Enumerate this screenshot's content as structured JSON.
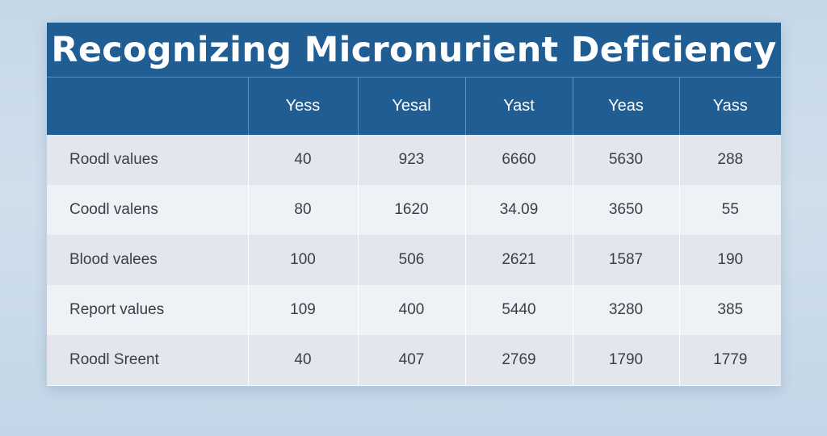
{
  "chart_data": {
    "type": "table",
    "title": "Recognizing Micronurient Deficiency",
    "columns": [
      "",
      "Yess",
      "Yesal",
      "Yast",
      "Yeas",
      "Yass"
    ],
    "rows": [
      {
        "label": "Roodl values",
        "values": [
          "40",
          "923",
          "6660",
          "5630",
          "288"
        ]
      },
      {
        "label": "Coodl valens",
        "values": [
          "80",
          "1620",
          "34.09",
          "3650",
          "55"
        ]
      },
      {
        "label": "Blood valees",
        "values": [
          "100",
          "506",
          "2621",
          "1587",
          "190"
        ]
      },
      {
        "label": "Report values",
        "values": [
          "109",
          "400",
          "5440",
          "3280",
          "385"
        ]
      },
      {
        "label": "Roodl Sreent",
        "values": [
          "40",
          "407",
          "2769",
          "1790",
          "1779"
        ]
      }
    ]
  },
  "colors": {
    "header_bg": "#1f5d93",
    "header_text": "#ffffff",
    "row_odd": "#e3e7ed",
    "row_even": "#eef1f5",
    "page_bg": "#c6d8e8"
  }
}
